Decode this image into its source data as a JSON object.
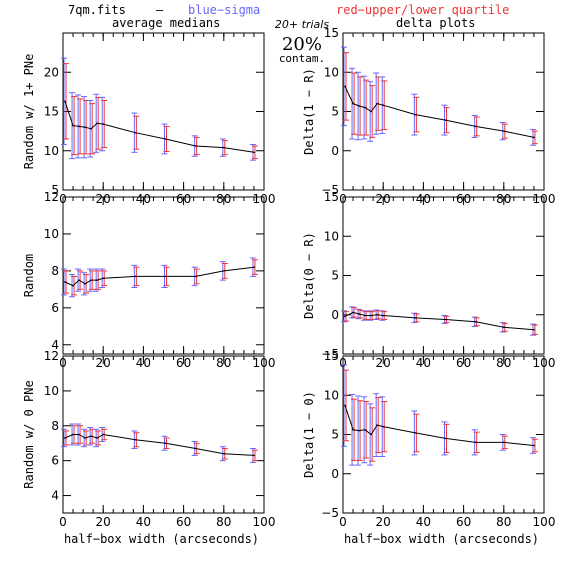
{
  "header": {
    "filename": "7qm.fits",
    "dash": "—",
    "blue_legend": "blue−sigma",
    "red_legend": "red−upper/lower quartile",
    "trials": "20+ trials",
    "contam_pct": "20%",
    "contam_label": "contam.",
    "left_title": "average medians",
    "right_title": "delta plots"
  },
  "colors": {
    "sigma": "#6666ff",
    "quartile": "#ee3333",
    "line": "#000000"
  },
  "chart_data": [
    {
      "id": "p1",
      "type": "line",
      "ylabel": "Random w/ 1+ PNe",
      "xlim": [
        0,
        100
      ],
      "ylim": [
        5,
        25
      ],
      "xticks": [
        0,
        20,
        40,
        60,
        80,
        100
      ],
      "yticks": [
        5,
        10,
        15,
        20
      ],
      "xlabel": "",
      "x": [
        1,
        5,
        8,
        11,
        14,
        17,
        20,
        36,
        51,
        66,
        80,
        95
      ],
      "y": [
        16.3,
        13.2,
        13.1,
        13.0,
        12.8,
        13.5,
        13.4,
        12.3,
        11.5,
        10.6,
        10.4,
        9.8
      ],
      "sigma": [
        5.5,
        4.2,
        4.0,
        3.9,
        3.6,
        3.7,
        3.4,
        2.5,
        1.9,
        1.3,
        1.1,
        1.0
      ],
      "quartile": [
        4.8,
        3.7,
        3.5,
        3.4,
        3.2,
        3.3,
        3.0,
        2.1,
        1.6,
        1.1,
        0.9,
        0.8
      ]
    },
    {
      "id": "p2",
      "type": "line",
      "ylabel": "Delta(1 − R)",
      "xlim": [
        0,
        100
      ],
      "ylim": [
        -5,
        15
      ],
      "xticks": [
        0,
        20,
        40,
        60,
        80,
        100
      ],
      "yticks": [
        -5,
        0,
        5,
        10,
        15
      ],
      "xlabel": "",
      "x": [
        1,
        5,
        8,
        11,
        14,
        17,
        20,
        36,
        51,
        66,
        80,
        95
      ],
      "y": [
        8.2,
        6.0,
        5.7,
        5.5,
        5.0,
        6.0,
        5.8,
        4.6,
        3.9,
        3.1,
        2.5,
        1.7
      ],
      "sigma": [
        5.0,
        4.5,
        4.3,
        4.0,
        3.8,
        3.9,
        3.6,
        2.6,
        1.9,
        1.4,
        1.1,
        1.0
      ],
      "quartile": [
        4.3,
        3.9,
        3.7,
        3.5,
        3.3,
        3.4,
        3.1,
        2.2,
        1.6,
        1.2,
        0.9,
        0.8
      ]
    },
    {
      "id": "p3",
      "type": "line",
      "ylabel": "Random",
      "xlim": [
        0,
        100
      ],
      "ylim": [
        3.5,
        12
      ],
      "xticks": [
        0,
        20,
        40,
        60,
        80,
        100
      ],
      "yticks": [
        4,
        6,
        8,
        10,
        12
      ],
      "xlabel": "",
      "x": [
        1,
        5,
        8,
        11,
        14,
        17,
        20,
        36,
        51,
        66,
        80,
        95
      ],
      "y": [
        7.4,
        7.2,
        7.5,
        7.3,
        7.5,
        7.5,
        7.6,
        7.7,
        7.7,
        7.7,
        8.0,
        8.2
      ],
      "sigma": [
        0.7,
        0.6,
        0.6,
        0.6,
        0.6,
        0.6,
        0.5,
        0.6,
        0.6,
        0.5,
        0.5,
        0.5
      ],
      "quartile": [
        0.6,
        0.5,
        0.5,
        0.5,
        0.5,
        0.5,
        0.4,
        0.5,
        0.5,
        0.4,
        0.4,
        0.4
      ]
    },
    {
      "id": "p4",
      "type": "line",
      "ylabel": "Delta(0 − R)",
      "xlim": [
        0,
        100
      ],
      "ylim": [
        -5,
        15
      ],
      "xticks": [
        0,
        20,
        40,
        60,
        80,
        100
      ],
      "yticks": [
        -5,
        0,
        5,
        10,
        15
      ],
      "xlabel": "",
      "x": [
        1,
        5,
        8,
        11,
        14,
        17,
        20,
        36,
        51,
        66,
        80,
        95
      ],
      "y": [
        -0.2,
        0.3,
        0.1,
        -0.1,
        -0.1,
        0.0,
        -0.1,
        -0.4,
        -0.6,
        -0.9,
        -1.6,
        -1.9
      ],
      "sigma": [
        0.7,
        0.7,
        0.6,
        0.6,
        0.6,
        0.6,
        0.6,
        0.6,
        0.5,
        0.6,
        0.6,
        0.7
      ],
      "quartile": [
        0.6,
        0.6,
        0.5,
        0.5,
        0.5,
        0.5,
        0.5,
        0.5,
        0.4,
        0.5,
        0.5,
        0.6
      ]
    },
    {
      "id": "p5",
      "type": "line",
      "ylabel": "Random w/ 0 PNe",
      "xlim": [
        0,
        100
      ],
      "ylim": [
        3,
        12
      ],
      "xticks": [
        0,
        20,
        40,
        60,
        80,
        100
      ],
      "yticks": [
        4,
        6,
        8,
        10,
        12
      ],
      "xlabel": "half−box width (arcseconds)",
      "x": [
        1,
        5,
        8,
        11,
        14,
        17,
        20,
        36,
        51,
        66,
        80,
        95
      ],
      "y": [
        7.3,
        7.5,
        7.5,
        7.3,
        7.4,
        7.3,
        7.5,
        7.2,
        7.0,
        6.7,
        6.4,
        6.3
      ],
      "sigma": [
        0.5,
        0.6,
        0.6,
        0.5,
        0.5,
        0.5,
        0.4,
        0.5,
        0.4,
        0.4,
        0.4,
        0.4
      ],
      "quartile": [
        0.4,
        0.5,
        0.5,
        0.4,
        0.4,
        0.4,
        0.3,
        0.4,
        0.3,
        0.3,
        0.3,
        0.3
      ]
    },
    {
      "id": "p6",
      "type": "line",
      "ylabel": "Delta(1 − 0)",
      "xlim": [
        0,
        100
      ],
      "ylim": [
        -5,
        15
      ],
      "xticks": [
        0,
        20,
        40,
        60,
        80,
        100
      ],
      "yticks": [
        -5,
        0,
        5,
        10,
        15
      ],
      "xlabel": "half−box width (arcseconds)",
      "x": [
        1,
        5,
        8,
        11,
        14,
        17,
        20,
        36,
        51,
        66,
        80,
        95
      ],
      "y": [
        8.7,
        5.6,
        5.5,
        5.6,
        5.0,
        6.2,
        6.0,
        5.2,
        4.5,
        4.0,
        4.0,
        3.6
      ],
      "sigma": [
        5.2,
        4.5,
        4.4,
        4.2,
        3.9,
        4.0,
        3.8,
        2.8,
        2.1,
        1.6,
        1.0,
        1.0
      ],
      "quartile": [
        4.5,
        3.9,
        3.8,
        3.6,
        3.4,
        3.5,
        3.2,
        2.4,
        1.8,
        1.3,
        0.8,
        0.8
      ]
    }
  ]
}
